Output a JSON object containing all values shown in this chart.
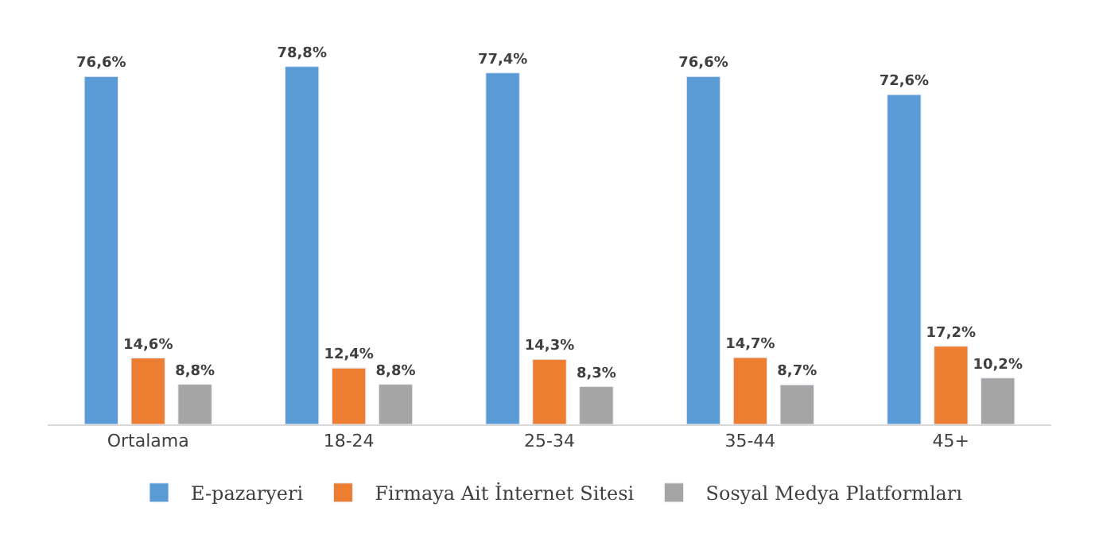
{
  "chart_data": {
    "type": "bar",
    "categories": [
      "Ortalama",
      "18-24",
      "25-34",
      "35-44",
      "45+"
    ],
    "series": [
      {
        "name": "E-pazaryeri",
        "color": "#5b9bd5",
        "values": [
          76.6,
          78.8,
          77.4,
          76.6,
          72.6
        ],
        "value_labels": [
          "76,6%",
          "78,8%",
          "77,4%",
          "76,6%",
          "72,6%"
        ]
      },
      {
        "name": "Firmaya Ait İnternet Sitesi",
        "color": "#ed7d31",
        "values": [
          14.6,
          12.4,
          14.3,
          14.7,
          17.2
        ],
        "value_labels": [
          "14,6%",
          "12,4%",
          "14,3%",
          "14,7%",
          "17,2%"
        ]
      },
      {
        "name": "Sosyal Medya Platformları",
        "color": "#a5a5a5",
        "values": [
          8.8,
          8.8,
          8.3,
          8.7,
          10.2
        ],
        "value_labels": [
          "8,8%",
          "8,8%",
          "8,3%",
          "8,7%",
          "10,2%"
        ]
      }
    ],
    "legend": "bottom"
  }
}
